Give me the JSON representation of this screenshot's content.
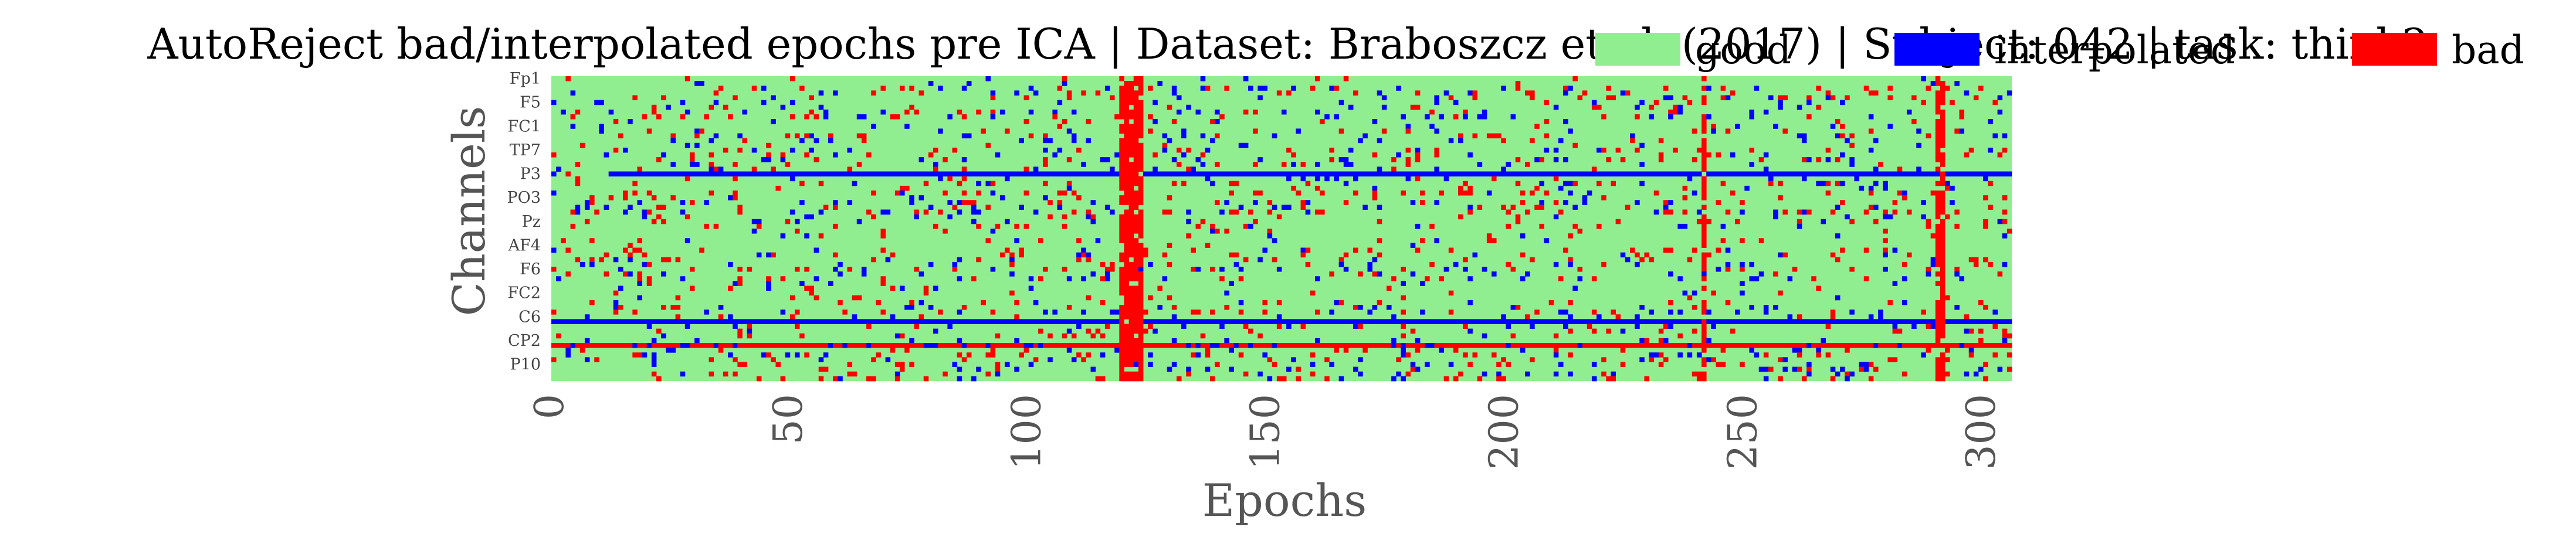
{
  "chart_data": {
    "type": "heatmap",
    "title": "AutoReject bad/interpolated epochs pre ICA | Dataset: Braboszcz et al. (2017) | Subject: 042 | task: think2",
    "xlabel": "Epochs",
    "ylabel": "Channels",
    "x_range": [
      0,
      306
    ],
    "x_ticks": [
      "0",
      "50",
      "100",
      "150",
      "200",
      "250",
      "300"
    ],
    "y_tick_labels": [
      "Fp1",
      "F5",
      "FC1",
      "TP7",
      "P3",
      "PO3",
      "Pz",
      "AF4",
      "F6",
      "FC2",
      "C6",
      "CP2",
      "P10"
    ],
    "n_channels": 64,
    "n_epochs": 306,
    "legend_position": "top-right",
    "categories": [
      {
        "name": "good",
        "color": "#90ee90"
      },
      {
        "name": "interpolated",
        "color": "#0000ff"
      },
      {
        "name": "bad",
        "color": "#ff0000"
      }
    ],
    "bad_epoch_columns": [
      119,
      120,
      121,
      122,
      123,
      241,
      290,
      291
    ],
    "persistent_interpolated_channel_rows": [
      {
        "row": 20,
        "from_epoch": 12
      },
      {
        "row": 51,
        "from_epoch": 0
      }
    ],
    "persistent_bad_channel_rows": [
      {
        "row": 56,
        "from_epoch": 0
      }
    ]
  }
}
